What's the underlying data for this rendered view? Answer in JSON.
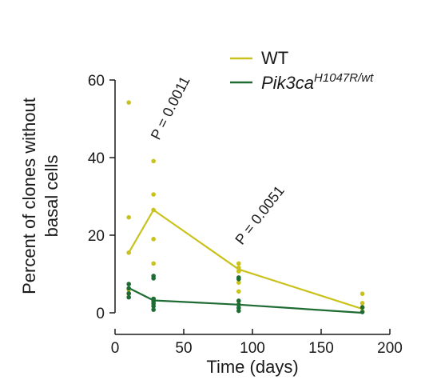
{
  "chart_data": {
    "type": "scatter",
    "title": "",
    "xlabel": "Time (days)",
    "ylabel_lines": [
      "Percent of clones without",
      "basal cells"
    ],
    "xlim": [
      0,
      200
    ],
    "ylim": [
      0,
      60
    ],
    "x_ticks": [
      0,
      50,
      100,
      150,
      200
    ],
    "y_ticks": [
      0,
      20,
      40,
      60
    ],
    "grid": false,
    "legend_position": "top-right",
    "series": [
      {
        "name": "WT",
        "color": "#c9c21d",
        "mean_line": [
          {
            "x": 10,
            "y": 15.5
          },
          {
            "x": 28,
            "y": 26.5
          },
          {
            "x": 90,
            "y": 11.2
          },
          {
            "x": 180,
            "y": 1.0
          }
        ],
        "points": [
          {
            "x": 10,
            "y": 54.2
          },
          {
            "x": 10,
            "y": 24.6
          },
          {
            "x": 10,
            "y": 15.5
          },
          {
            "x": 10,
            "y": 5.9
          },
          {
            "x": 10,
            "y": 4.9
          },
          {
            "x": 28,
            "y": 39.1
          },
          {
            "x": 28,
            "y": 30.5
          },
          {
            "x": 28,
            "y": 26.5
          },
          {
            "x": 28,
            "y": 19.0
          },
          {
            "x": 28,
            "y": 12.7
          },
          {
            "x": 28,
            "y": 3.6
          },
          {
            "x": 28,
            "y": 2.4
          },
          {
            "x": 90,
            "y": 12.7
          },
          {
            "x": 90,
            "y": 11.6
          },
          {
            "x": 90,
            "y": 10.7
          },
          {
            "x": 90,
            "y": 7.8
          },
          {
            "x": 90,
            "y": 5.5
          },
          {
            "x": 90,
            "y": 3.0
          },
          {
            "x": 180,
            "y": 4.9
          },
          {
            "x": 180,
            "y": 2.5
          },
          {
            "x": 180,
            "y": 1.4
          },
          {
            "x": 180,
            "y": 0.3
          }
        ]
      },
      {
        "name_main": "Pik3ca",
        "name_sup": "H1047R/wt",
        "color": "#1e6b34",
        "mean_line": [
          {
            "x": 10,
            "y": 6.4
          },
          {
            "x": 28,
            "y": 3.2
          },
          {
            "x": 90,
            "y": 2.1
          },
          {
            "x": 180,
            "y": 0.0
          }
        ],
        "points": [
          {
            "x": 10,
            "y": 7.4
          },
          {
            "x": 10,
            "y": 6.3
          },
          {
            "x": 10,
            "y": 5.0
          },
          {
            "x": 10,
            "y": 4.0
          },
          {
            "x": 28,
            "y": 9.5
          },
          {
            "x": 28,
            "y": 8.9
          },
          {
            "x": 28,
            "y": 3.6
          },
          {
            "x": 28,
            "y": 3.0
          },
          {
            "x": 28,
            "y": 2.4
          },
          {
            "x": 28,
            "y": 1.7
          },
          {
            "x": 28,
            "y": 0.8
          },
          {
            "x": 90,
            "y": 9.1
          },
          {
            "x": 90,
            "y": 8.7
          },
          {
            "x": 90,
            "y": 3.1
          },
          {
            "x": 90,
            "y": 2.1
          },
          {
            "x": 90,
            "y": 1.3
          },
          {
            "x": 90,
            "y": 0.5
          },
          {
            "x": 180,
            "y": 1.4
          },
          {
            "x": 180,
            "y": 0.2
          }
        ]
      }
    ],
    "annotations": [
      {
        "text": "P = 0.0011",
        "x": 28,
        "y": 46
      },
      {
        "text": "P = 0.0051",
        "x": 90,
        "y": 17.5
      }
    ]
  }
}
